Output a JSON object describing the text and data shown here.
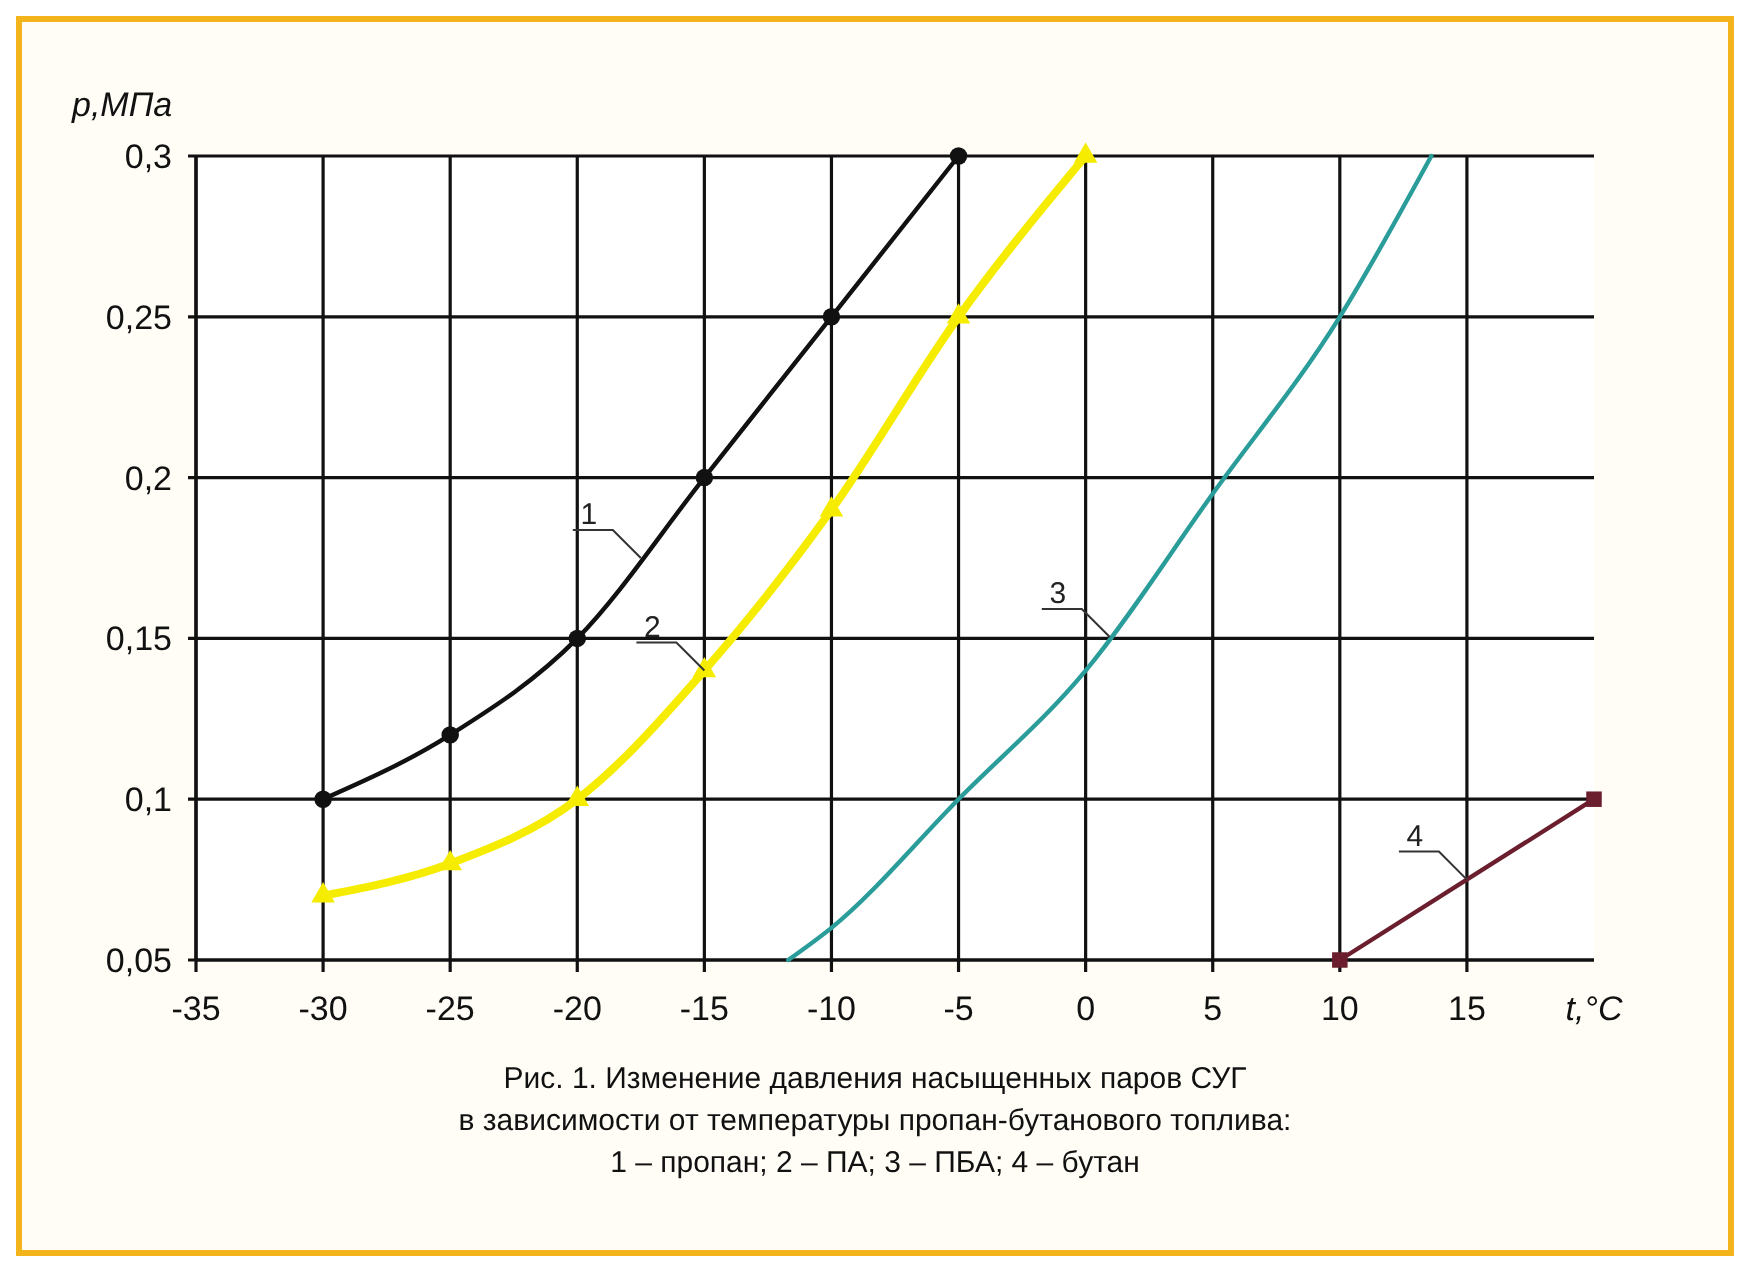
{
  "chart_data": {
    "type": "line",
    "xlabel": "t,°C",
    "ylabel": "p,МПа",
    "xlim": [
      -35,
      20
    ],
    "xticks": [
      -35,
      -30,
      -25,
      -20,
      -15,
      -10,
      -5,
      0,
      5,
      10,
      15
    ],
    "ylim": [
      0.05,
      0.3
    ],
    "yticks": [
      {
        "value": 0.05,
        "label": "0,05"
      },
      {
        "value": 0.1,
        "label": "0,1"
      },
      {
        "value": 0.15,
        "label": "0,15"
      },
      {
        "value": 0.2,
        "label": "0,2"
      },
      {
        "value": 0.25,
        "label": "0,25"
      },
      {
        "value": 0.3,
        "label": "0,3"
      }
    ],
    "grid": true,
    "series": [
      {
        "name": "1",
        "color": "#111111",
        "marker": "circle",
        "x": [
          -30,
          -25,
          -20,
          -15,
          -10,
          -5
        ],
        "values": [
          0.1,
          0.12,
          0.15,
          0.2,
          0.25,
          0.3
        ]
      },
      {
        "name": "2",
        "color": "#f5ec00",
        "marker": "triangle",
        "x": [
          -30,
          -25,
          -20,
          -15,
          -10,
          -5,
          0
        ],
        "values": [
          0.07,
          0.08,
          0.1,
          0.14,
          0.19,
          0.25,
          0.3
        ]
      },
      {
        "name": "3",
        "color": "#2a9d9a",
        "marker": "none",
        "x": [
          -11.7,
          -10,
          -5,
          0,
          5,
          10,
          13.6
        ],
        "values": [
          0.05,
          0.06,
          0.1,
          0.14,
          0.195,
          0.25,
          0.3
        ]
      },
      {
        "name": "4",
        "color": "#6b1f2e",
        "marker": "square",
        "x": [
          10,
          20
        ],
        "values": [
          0.05,
          0.1
        ]
      }
    ],
    "annotations": [
      "Рис. 1. Изменение давления насыщенных паров СУГ",
      "в зависимости от температуры пропан-бутанового топлива:",
      "1 – пропан; 2 – ПА; 3 – ПБА; 4 – бутан"
    ]
  }
}
